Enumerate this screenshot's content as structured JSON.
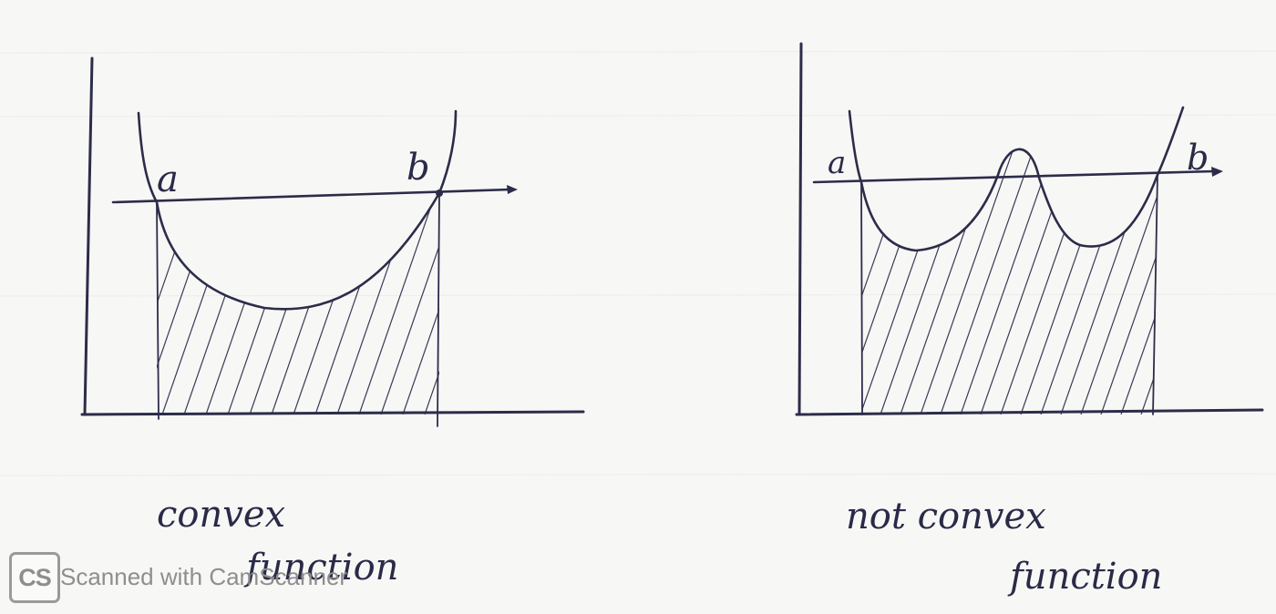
{
  "panels": [
    {
      "id": "left",
      "point_a": "a",
      "point_b": "b",
      "caption_line1": "convex",
      "caption_line2": "function"
    },
    {
      "id": "right",
      "point_a": "a",
      "point_b": "b",
      "caption_line1": "not convex",
      "caption_line2": "function"
    }
  ],
  "watermark": {
    "badge": "CS",
    "text": "Scanned with CamScanner"
  },
  "colors": {
    "ink": "#2c2c4a",
    "paper": "#f7f7f5",
    "watermark": "#8e8e8e"
  }
}
